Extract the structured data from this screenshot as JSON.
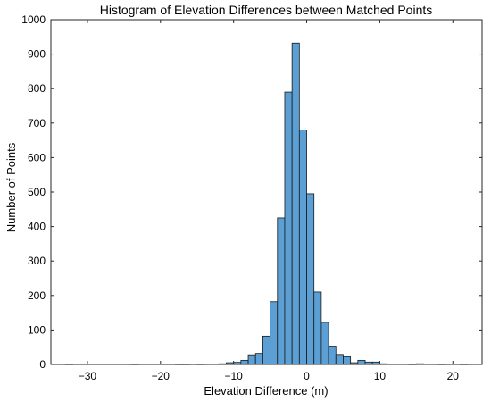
{
  "chart_data": {
    "type": "bar",
    "title": "Histogram of Elevation Differences between Matched Points",
    "xlabel": "Elevation Difference (m)",
    "ylabel": "Number of Points",
    "xlim": [
      -35,
      24
    ],
    "ylim": [
      0,
      1000
    ],
    "xticks": [
      -30,
      -20,
      -10,
      0,
      10,
      20
    ],
    "yticks": [
      0,
      100,
      200,
      300,
      400,
      500,
      600,
      700,
      800,
      900,
      1000
    ],
    "bin_width": 1,
    "grid": false,
    "bar_color": "#5b9fd4",
    "edge_color": "#1a1a1a",
    "bins": [
      {
        "x0": -33,
        "x1": -32,
        "count": 1
      },
      {
        "x0": -24,
        "x1": -23,
        "count": 1
      },
      {
        "x0": -18,
        "x1": -17,
        "count": 1
      },
      {
        "x0": -17,
        "x1": -16,
        "count": 1
      },
      {
        "x0": -15,
        "x1": -14,
        "count": 1
      },
      {
        "x0": -12,
        "x1": -11,
        "count": 2
      },
      {
        "x0": -11,
        "x1": -10,
        "count": 5
      },
      {
        "x0": -10,
        "x1": -9,
        "count": 6
      },
      {
        "x0": -9,
        "x1": -8,
        "count": 12
      },
      {
        "x0": -8,
        "x1": -7,
        "count": 28
      },
      {
        "x0": -7,
        "x1": -6,
        "count": 32
      },
      {
        "x0": -6,
        "x1": -5,
        "count": 82
      },
      {
        "x0": -5,
        "x1": -4,
        "count": 182
      },
      {
        "x0": -4,
        "x1": -3,
        "count": 425
      },
      {
        "x0": -3,
        "x1": -2,
        "count": 790
      },
      {
        "x0": -2,
        "x1": -1,
        "count": 932
      },
      {
        "x0": -1,
        "x1": 0,
        "count": 680
      },
      {
        "x0": 0,
        "x1": 1,
        "count": 495
      },
      {
        "x0": 1,
        "x1": 2,
        "count": 210
      },
      {
        "x0": 2,
        "x1": 3,
        "count": 122
      },
      {
        "x0": 3,
        "x1": 4,
        "count": 53
      },
      {
        "x0": 4,
        "x1": 5,
        "count": 29
      },
      {
        "x0": 5,
        "x1": 6,
        "count": 22
      },
      {
        "x0": 6,
        "x1": 7,
        "count": 5
      },
      {
        "x0": 7,
        "x1": 8,
        "count": 12
      },
      {
        "x0": 8,
        "x1": 9,
        "count": 7
      },
      {
        "x0": 9,
        "x1": 10,
        "count": 7
      },
      {
        "x0": 10,
        "x1": 11,
        "count": 2
      },
      {
        "x0": 14,
        "x1": 15,
        "count": 1
      },
      {
        "x0": 15,
        "x1": 16,
        "count": 2
      },
      {
        "x0": 18,
        "x1": 19,
        "count": 1
      },
      {
        "x0": 21,
        "x1": 22,
        "count": 1
      }
    ]
  }
}
